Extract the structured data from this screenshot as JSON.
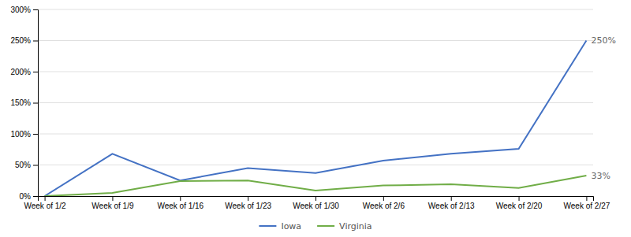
{
  "chart_data": {
    "type": "line",
    "categories": [
      "Week of 1/2",
      "Week of 1/9",
      "Week of 1/16",
      "Week of 1/23",
      "Week of 1/30",
      "Week of 2/6",
      "Week of 2/13",
      "Week of 2/20",
      "Week of 2/27"
    ],
    "series": [
      {
        "name": "Iowa",
        "color": "#4472C4",
        "values": [
          0,
          68,
          25,
          45,
          37,
          57,
          68,
          76,
          250
        ]
      },
      {
        "name": "Virginia",
        "color": "#70AD47",
        "values": [
          0,
          5,
          24,
          25,
          9,
          17,
          19,
          13,
          33
        ]
      }
    ],
    "annotations": [
      {
        "text": "250%",
        "x": "Week of 2/27",
        "y": 250
      },
      {
        "text": "33%",
        "x": "Week of 2/27",
        "y": 33
      }
    ],
    "ylim": [
      0,
      300
    ],
    "yticks": [
      {
        "value": 0,
        "label": "0%"
      },
      {
        "value": 50,
        "label": "50%"
      },
      {
        "value": 100,
        "label": "100%"
      },
      {
        "value": 150,
        "label": "150%"
      },
      {
        "value": 200,
        "label": "200%"
      },
      {
        "value": 250,
        "label": "250%"
      },
      {
        "value": 300,
        "label": "300%"
      }
    ],
    "grid": true,
    "legend": "bottom"
  }
}
